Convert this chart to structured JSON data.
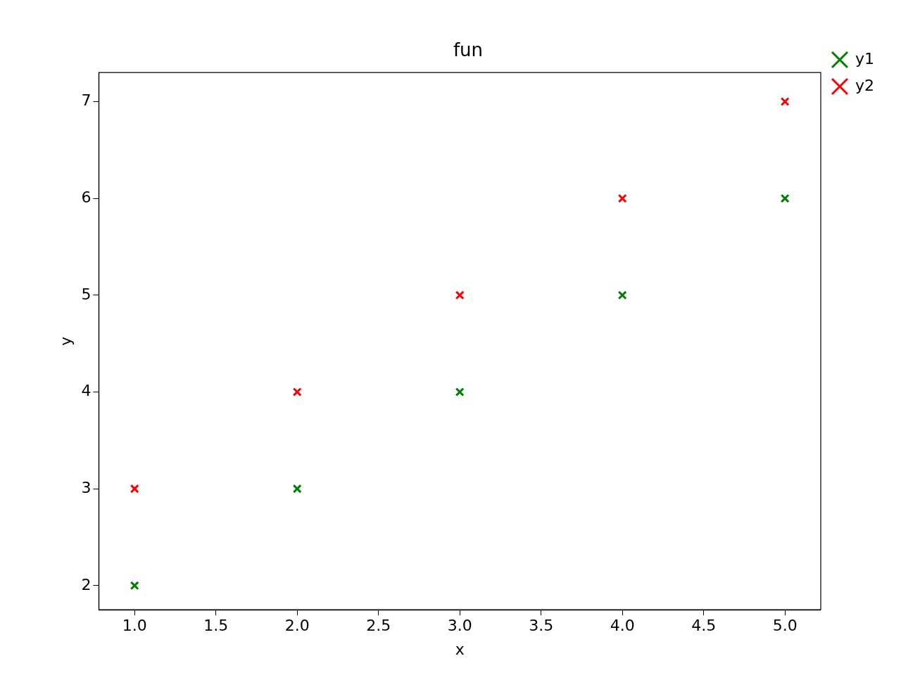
{
  "chart_data": {
    "type": "scatter",
    "title": "fun",
    "xlabel": "x",
    "ylabel": "y",
    "x": [
      1,
      2,
      3,
      4,
      5
    ],
    "series": [
      {
        "name": "y1",
        "color": "#008000",
        "values": [
          2,
          3,
          4,
          5,
          6
        ]
      },
      {
        "name": "y2",
        "color": "#ff0000",
        "values": [
          3,
          4,
          5,
          6,
          7
        ]
      }
    ],
    "xlim": [
      0.78,
      5.22
    ],
    "xticks": [
      {
        "value": 1,
        "label": "1.0"
      },
      {
        "value": 1.5,
        "label": "1.5"
      },
      {
        "value": 2,
        "label": "2.0"
      },
      {
        "value": 2.5,
        "label": "2.5"
      },
      {
        "value": 3,
        "label": "3.0"
      },
      {
        "value": 3.5,
        "label": "3.5"
      },
      {
        "value": 4,
        "label": "4.0"
      },
      {
        "value": 4.5,
        "label": "4.5"
      },
      {
        "value": 5,
        "label": "5.0"
      }
    ],
    "ylim": [
      1.75,
      7.3
    ],
    "yticks": [
      2,
      3,
      4,
      5,
      6,
      7
    ],
    "grid": false,
    "legend": "top right",
    "marker": "cross"
  }
}
